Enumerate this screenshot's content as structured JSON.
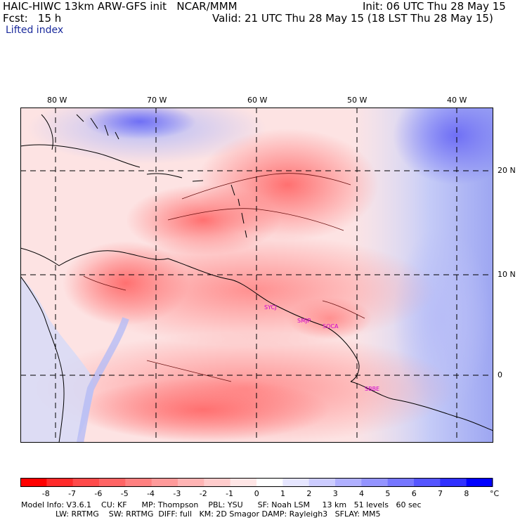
{
  "header": {
    "model_line": "HAIC-HIWC 13km ARW-GFS init   NCAR/MMM",
    "fcst_label": "Fcst:   15 h",
    "init_line": "Init: 06 UTC Thu 28 May 15",
    "valid_line": "Valid: 21 UTC Thu 28 May 15 (18 LST Thu 28 May 15)",
    "field_name": "Lifted index"
  },
  "map": {
    "longitudes": [
      "80 W",
      "70 W",
      "60 W",
      "50 W",
      "40 W"
    ],
    "latitudes": [
      "20 N",
      "10 N",
      "0"
    ],
    "stations": [
      "SYCJ",
      "SMJP",
      "SOCA",
      "SBBE"
    ],
    "ocean_color": "#fde6e6",
    "grid_style": "dashed"
  },
  "colorbar": {
    "labels": [
      "-8",
      "-7",
      "-6",
      "-5",
      "-4",
      "-3",
      "-2",
      "-1",
      "0",
      "1",
      "2",
      "3",
      "4",
      "5",
      "6",
      "7",
      "8"
    ],
    "unit": "°C",
    "colors": [
      "#ff0000",
      "#ff2a2a",
      "#ff4a4a",
      "#ff6464",
      "#ff8080",
      "#ff9a9a",
      "#ffb4b4",
      "#ffcccc",
      "#ffe6e6",
      "#ffffff",
      "#e6e6ff",
      "#ccccff",
      "#b0b0ff",
      "#9494ff",
      "#7676ff",
      "#5555ff",
      "#3030ff",
      "#0000ff"
    ]
  },
  "footer": {
    "line1": "Model Info: V3.6.1    CU: KF      MP: Thompson    PBL: YSU      SF: Noah LSM     13 km   51 levels   60 sec",
    "line2": "              LW: RRTMG    SW: RRTMG  DIFF: full   KM: 2D Smagor DAMP: Rayleigh3   SFLAY: MM5"
  }
}
